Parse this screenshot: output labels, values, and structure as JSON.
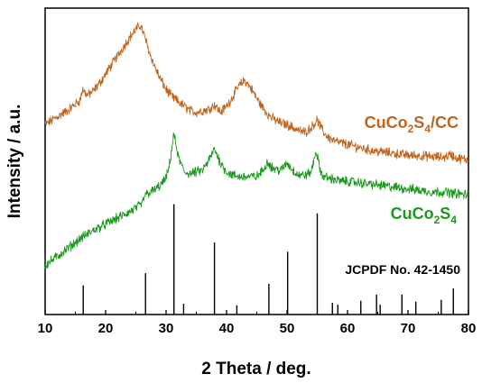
{
  "chart_data": {
    "type": "line",
    "xlabel": "2 Theta / deg.",
    "ylabel": "Intensity / a.u.",
    "xlim": [
      10,
      80
    ],
    "ylim": [
      0,
      100
    ],
    "x_ticks": [
      "10",
      "20",
      "30",
      "40",
      "50",
      "60",
      "70",
      "80"
    ],
    "y_ticks": "none",
    "grid": false,
    "series": [
      {
        "name": "CuCo2S4/CC",
        "label_main": "CuCo",
        "label_sub1": "2",
        "label_mid": "S",
        "label_sub2": "4",
        "label_tail": "/CC",
        "color": "#c0651e",
        "x": [
          10,
          12,
          14,
          15.8,
          16.2,
          17,
          18,
          19,
          20,
          21,
          22,
          23,
          24,
          25,
          25.8,
          26.5,
          27,
          28,
          29,
          30,
          31,
          32,
          33,
          34,
          35,
          36,
          37,
          38,
          39,
          40,
          41,
          42,
          43,
          44,
          45,
          46,
          47,
          48,
          49,
          50,
          51,
          52,
          53,
          54,
          55,
          56,
          57,
          58,
          59,
          60,
          62,
          64,
          66,
          68,
          70,
          72,
          74,
          76,
          77,
          78,
          80
        ],
        "y": [
          62,
          64.5,
          67,
          70,
          73.5,
          71.5,
          73,
          75.5,
          78.5,
          81.5,
          84.5,
          87.5,
          90.5,
          93,
          94.5,
          90.5,
          87,
          81.5,
          77,
          73.5,
          71,
          69.5,
          68,
          66.5,
          66,
          66.5,
          67,
          68.5,
          66,
          68,
          71,
          74.5,
          76.5,
          74,
          70.5,
          67.5,
          65,
          63.5,
          62.5,
          62,
          61,
          60,
          59.5,
          61,
          63.5,
          59.5,
          57.5,
          56.5,
          56,
          55.5,
          54.5,
          53.5,
          53,
          52.5,
          52,
          51.8,
          51.5,
          51.3,
          52.3,
          51,
          50.5
        ]
      },
      {
        "name": "CuCo2S4",
        "label_main": "CuCo",
        "label_sub1": "2",
        "label_mid": "S",
        "label_sub2": "4",
        "label_tail": "",
        "color": "#1a9a1a",
        "x": [
          10,
          12,
          14,
          16,
          18,
          20,
          22,
          24,
          26,
          26.5,
          27,
          28,
          29,
          30,
          30.5,
          31.3,
          32,
          33,
          34,
          35,
          36,
          37,
          38,
          39,
          40,
          41,
          42,
          43,
          44,
          45,
          46,
          46.8,
          47.5,
          48,
          49,
          50,
          51,
          52,
          53,
          54,
          54.8,
          55.5,
          56,
          57,
          58,
          59,
          60,
          62,
          64,
          66,
          68,
          70,
          72,
          74,
          76,
          78,
          80
        ],
        "y": [
          16,
          19,
          22,
          25,
          27.5,
          29.5,
          31.5,
          33.5,
          36,
          39,
          39.5,
          40.5,
          42,
          44.5,
          48,
          59,
          51.5,
          46.5,
          46,
          46.5,
          47,
          50,
          54,
          49.5,
          46.5,
          45.5,
          45,
          45,
          45,
          45,
          47,
          50,
          48,
          47.5,
          47,
          49.5,
          47,
          45.5,
          45.5,
          46.5,
          53.5,
          47,
          45,
          44.5,
          44,
          43.5,
          43.5,
          43,
          42.5,
          42,
          41.5,
          41,
          40.5,
          40,
          40,
          39.5,
          39
        ]
      }
    ],
    "reference_pattern": {
      "label": "JCPDF No. 42-1450",
      "peaks": [
        {
          "x": 16.3,
          "h": 9.5
        },
        {
          "x": 26.6,
          "h": 13.5
        },
        {
          "x": 31.3,
          "h": 36
        },
        {
          "x": 32.9,
          "h": 3.5
        },
        {
          "x": 38.0,
          "h": 23.5
        },
        {
          "x": 41.7,
          "h": 3
        },
        {
          "x": 47.0,
          "h": 10
        },
        {
          "x": 50.1,
          "h": 20.5
        },
        {
          "x": 55.0,
          "h": 33
        },
        {
          "x": 57.5,
          "h": 3.8
        },
        {
          "x": 58.4,
          "h": 3.2
        },
        {
          "x": 62.2,
          "h": 4.5
        },
        {
          "x": 64.8,
          "h": 6.5
        },
        {
          "x": 65.4,
          "h": 3.2
        },
        {
          "x": 69.0,
          "h": 6.5
        },
        {
          "x": 71.3,
          "h": 4.2
        },
        {
          "x": 75.5,
          "h": 4.8
        },
        {
          "x": 77.5,
          "h": 8.5
        }
      ]
    }
  }
}
